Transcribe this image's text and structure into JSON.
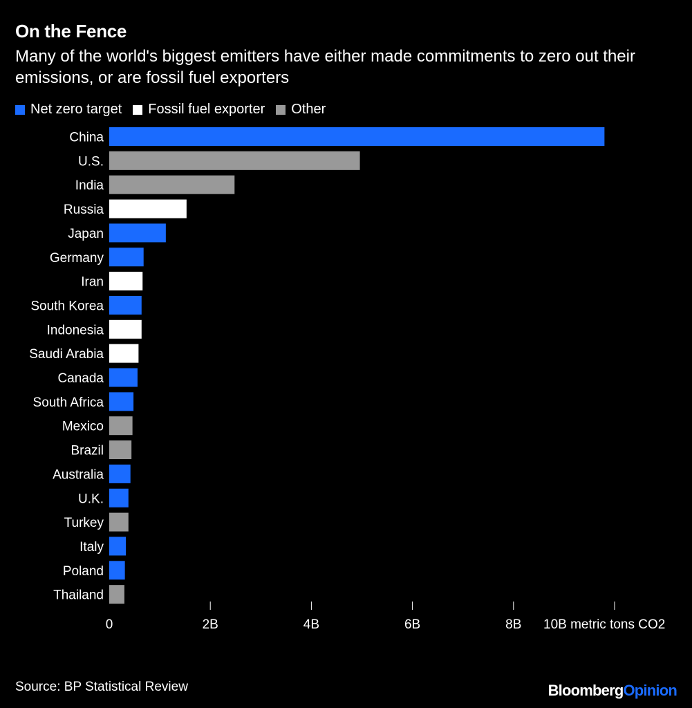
{
  "header": {
    "title": "On the Fence",
    "subtitle": "Many of the world's biggest emitters have either made commitments to zero out their emissions, or are fossil fuel exporters"
  },
  "legend": {
    "items": [
      {
        "label": "Net zero target",
        "color": "#1a6bff"
      },
      {
        "label": "Fossil fuel exporter",
        "color": "#ffffff"
      },
      {
        "label": "Other",
        "color": "#999999"
      }
    ]
  },
  "chart_data": {
    "type": "bar",
    "orientation": "horizontal",
    "title": "On the Fence",
    "xlabel": "metric tons CO2",
    "xlim": [
      0,
      10000000000
    ],
    "x_ticks": [
      {
        "value": 0,
        "label": "0"
      },
      {
        "value": 2000000000,
        "label": "2B"
      },
      {
        "value": 4000000000,
        "label": "4B"
      },
      {
        "value": 6000000000,
        "label": "6B"
      },
      {
        "value": 8000000000,
        "label": "8B"
      },
      {
        "value": 10000000000,
        "label": "10B metric tons CO2"
      }
    ],
    "categories": [
      "China",
      "U.S.",
      "India",
      "Russia",
      "Japan",
      "Germany",
      "Iran",
      "South Korea",
      "Indonesia",
      "Saudi Arabia",
      "Canada",
      "South Africa",
      "Mexico",
      "Brazil",
      "Australia",
      "U.K.",
      "Turkey",
      "Italy",
      "Poland",
      "Thailand"
    ],
    "values": [
      9800000000,
      4960000000,
      2480000000,
      1530000000,
      1120000000,
      680000000,
      660000000,
      640000000,
      640000000,
      580000000,
      560000000,
      480000000,
      460000000,
      440000000,
      420000000,
      380000000,
      380000000,
      330000000,
      310000000,
      300000000
    ],
    "groups": [
      "Net zero target",
      "Other",
      "Other",
      "Fossil fuel exporter",
      "Net zero target",
      "Net zero target",
      "Fossil fuel exporter",
      "Net zero target",
      "Fossil fuel exporter",
      "Fossil fuel exporter",
      "Net zero target",
      "Net zero target",
      "Other",
      "Other",
      "Net zero target",
      "Net zero target",
      "Other",
      "Net zero target",
      "Net zero target",
      "Other"
    ],
    "group_colors": {
      "Net zero target": "#1a6bff",
      "Fossil fuel exporter": "#ffffff",
      "Other": "#999999"
    },
    "grid": false,
    "legend_position": "top-left"
  },
  "footer": {
    "source": "Source: BP Statistical Review",
    "brand_main": "Bloomberg",
    "brand_accent": "Opinion"
  }
}
